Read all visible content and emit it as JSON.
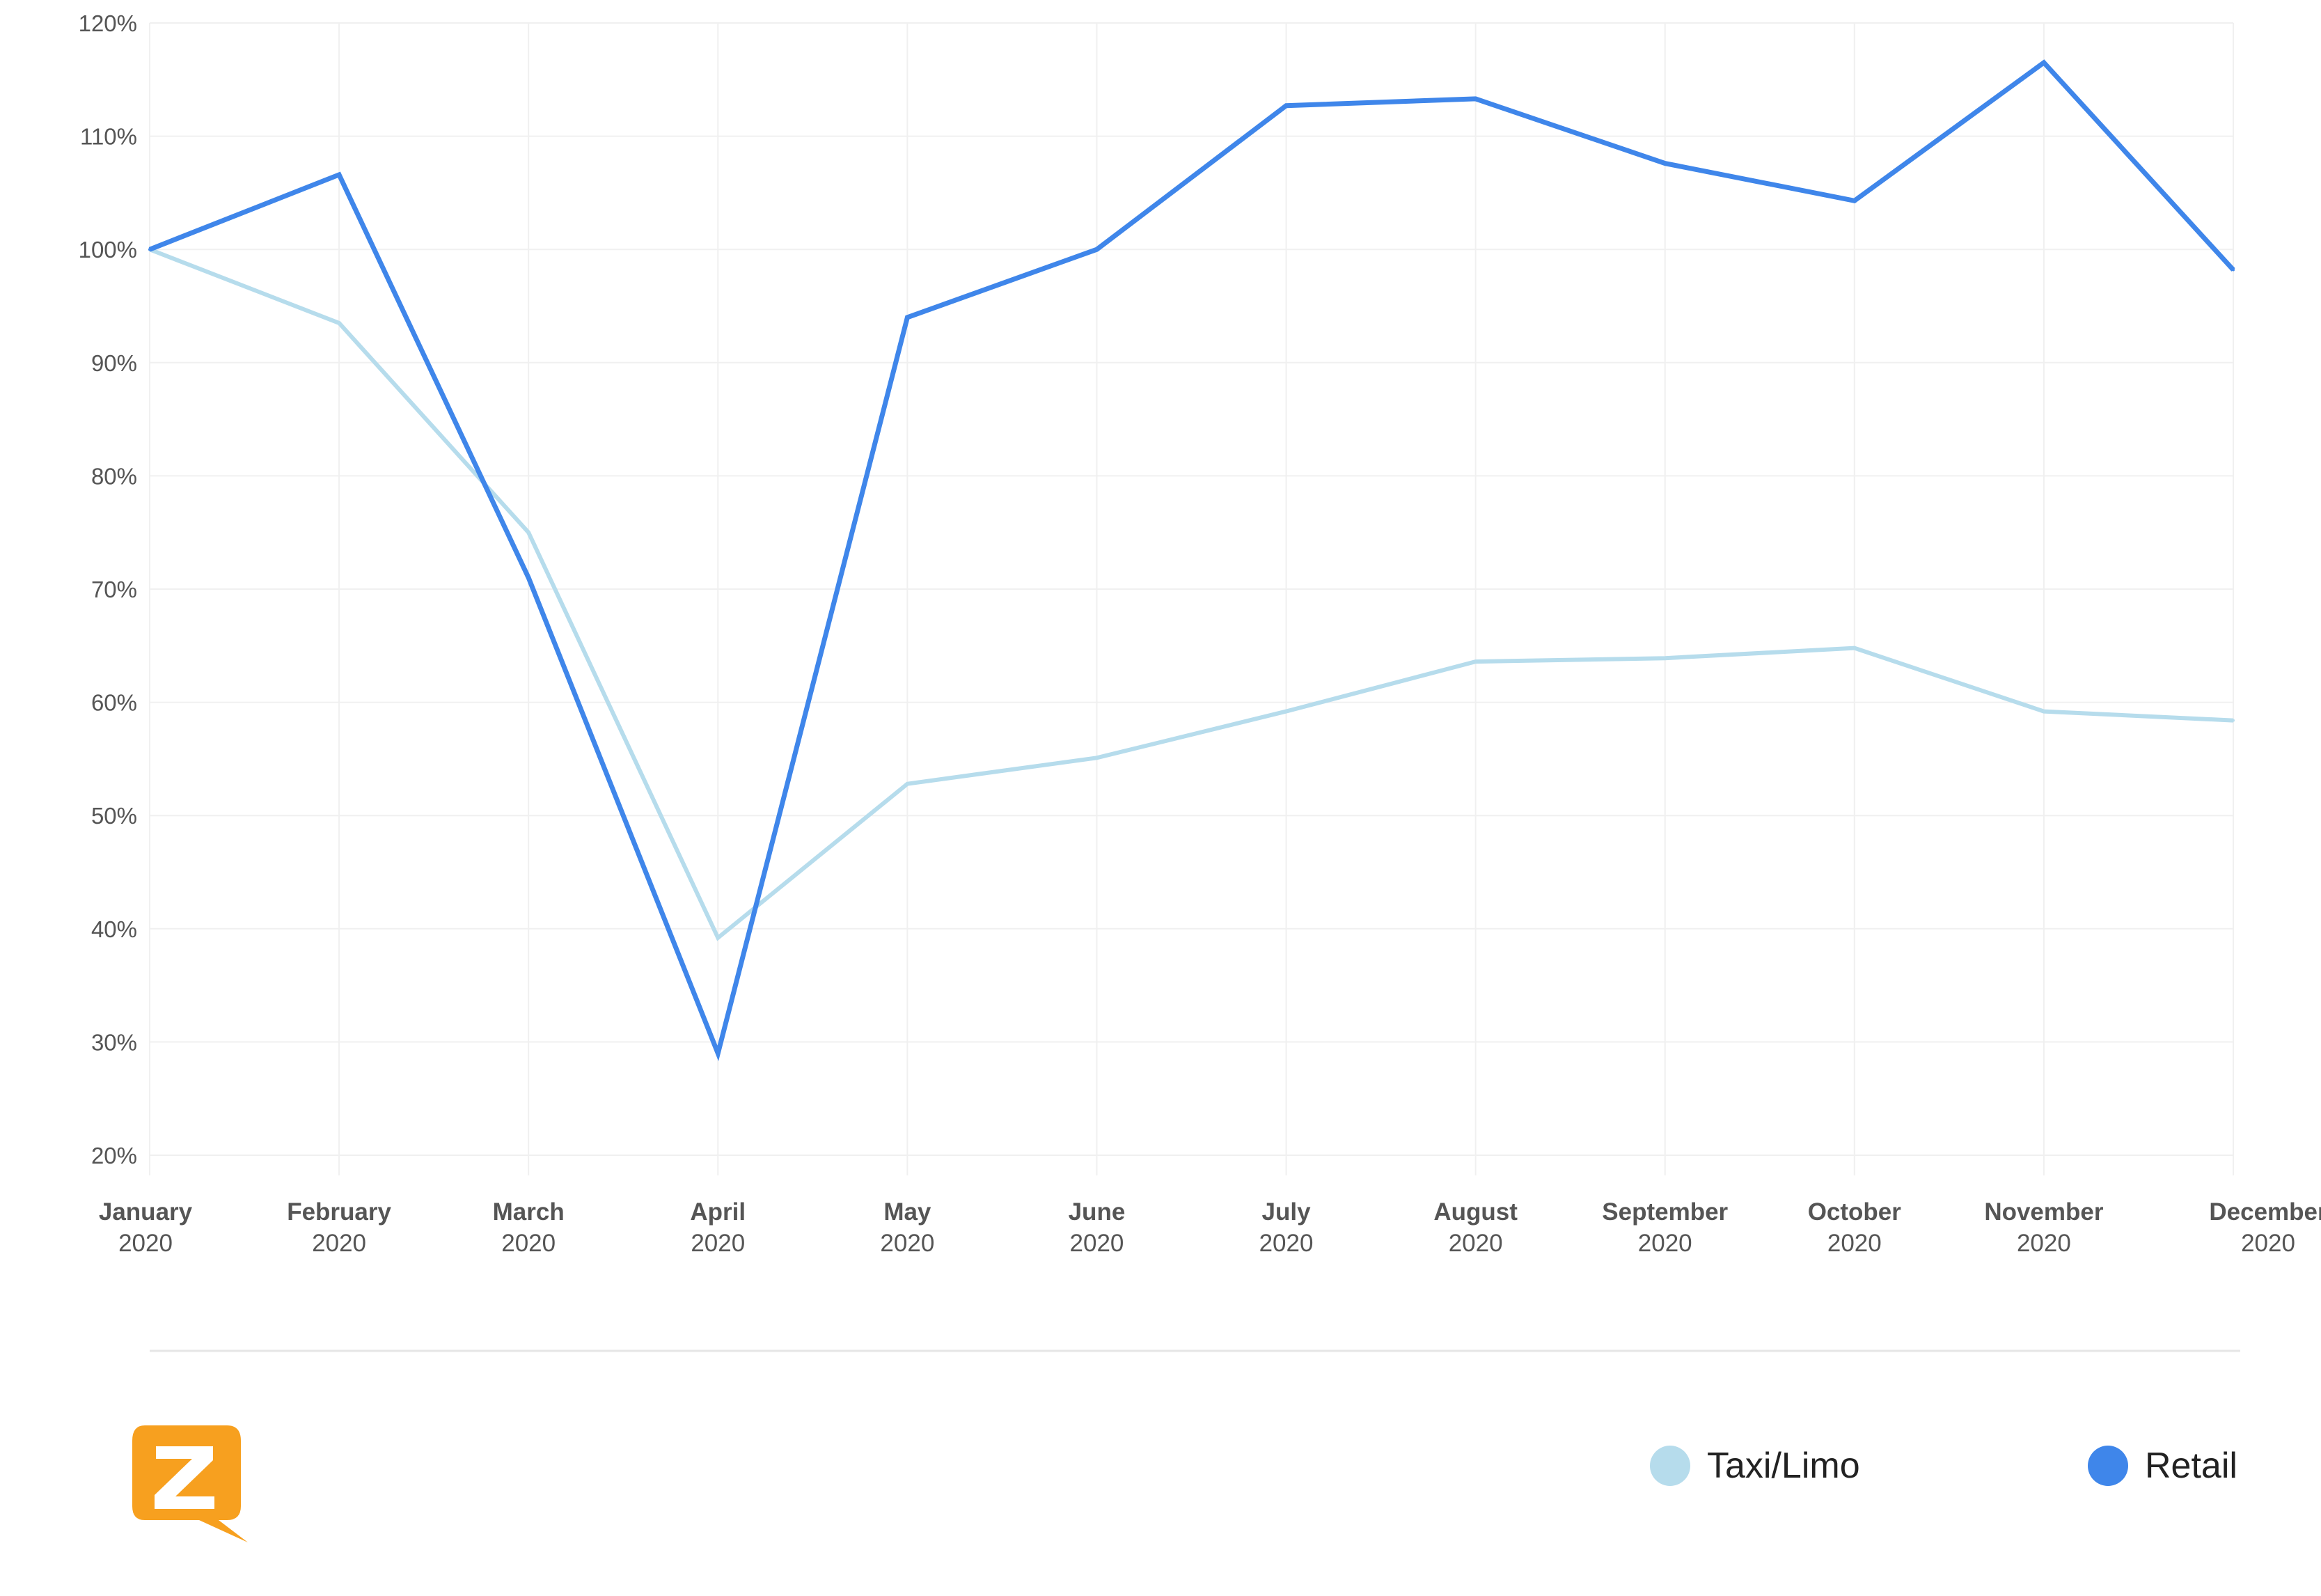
{
  "chart_data": {
    "type": "line",
    "categories": [
      {
        "month": "January",
        "year": "2020"
      },
      {
        "month": "February",
        "year": "2020"
      },
      {
        "month": "March",
        "year": "2020"
      },
      {
        "month": "April",
        "year": "2020"
      },
      {
        "month": "May",
        "year": "2020"
      },
      {
        "month": "June",
        "year": "2020"
      },
      {
        "month": "July",
        "year": "2020"
      },
      {
        "month": "August",
        "year": "2020"
      },
      {
        "month": "September",
        "year": "2020"
      },
      {
        "month": "October",
        "year": "2020"
      },
      {
        "month": "November",
        "year": "2020"
      },
      {
        "month": "December",
        "year": "2020"
      }
    ],
    "series": [
      {
        "name": "Taxi/Limo",
        "color": "#b6dcec",
        "values": [
          100,
          93.5,
          75,
          39.2,
          52.8,
          55.1,
          59.2,
          63.6,
          63.9,
          64.8,
          59.2,
          58.4
        ]
      },
      {
        "name": "Retail",
        "color": "#3f86ea",
        "values": [
          100,
          106.6,
          71,
          29,
          94,
          100,
          112.7,
          113.3,
          107.6,
          104.3,
          116.5,
          98.2
        ]
      }
    ],
    "yticks": [
      "20%",
      "30%",
      "40%",
      "50%",
      "60%",
      "70%",
      "80%",
      "90%",
      "100%",
      "110%",
      "120%"
    ],
    "yunit": "%",
    "ylim": [
      20,
      120
    ],
    "grid": true,
    "legend_position": "bottom-right",
    "title": "",
    "xlabel": "",
    "ylabel": ""
  },
  "legend": {
    "items": [
      {
        "label": "Taxi/Limo",
        "color": "#b6dcec"
      },
      {
        "label": "Retail",
        "color": "#3f86ea"
      }
    ]
  },
  "brand": {
    "logo_icon": "zoom-logo-icon",
    "color": "#f7a01f"
  }
}
